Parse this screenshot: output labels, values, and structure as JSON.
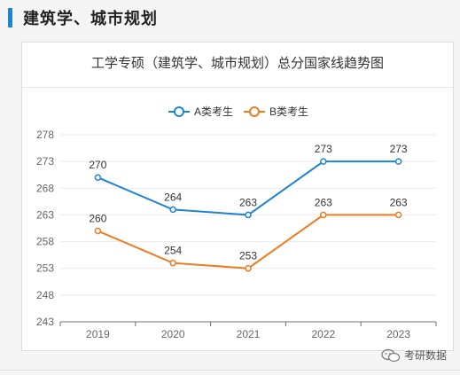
{
  "header": {
    "title": "建筑学、城市规划"
  },
  "watermark": {
    "text": "考研数据",
    "icon": "wechat-icon"
  },
  "colors": {
    "accent": "#1e83d8",
    "seriesA": "#1e83d8",
    "seriesB": "#f07a1e"
  },
  "chart_data": {
    "type": "line",
    "title": "工学专硕（建筑学、城市规划）总分国家线趋势图",
    "xlabel": "",
    "ylabel": "",
    "categories": [
      "2019",
      "2020",
      "2021",
      "2022",
      "2023"
    ],
    "series": [
      {
        "name": "A类考生",
        "values": [
          270,
          264,
          263,
          273,
          273
        ],
        "color": "#1e83d8"
      },
      {
        "name": "B类考生",
        "values": [
          260,
          254,
          253,
          263,
          263
        ],
        "color": "#f07a1e"
      }
    ],
    "yticks": [
      243,
      248,
      253,
      258,
      263,
      268,
      273,
      278
    ],
    "ylim": [
      243,
      278
    ],
    "grid": true,
    "legend": "top-center"
  }
}
